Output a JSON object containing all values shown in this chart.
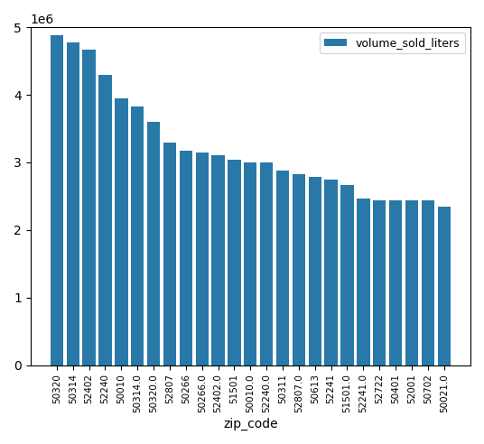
{
  "categories": [
    "50320",
    "50314",
    "52402",
    "52240",
    "50010",
    "50314.0",
    "50320.0",
    "52807",
    "50266",
    "50266.0",
    "52402.0",
    "51501",
    "50010.0",
    "52240.0",
    "50311",
    "52807.0",
    "50613",
    "52241",
    "51501.0",
    "52241.0",
    "52722",
    "50401",
    "52001",
    "50702",
    "50021.0"
  ],
  "values": [
    4880000,
    4780000,
    4670000,
    4300000,
    3950000,
    3830000,
    3600000,
    3290000,
    3170000,
    3150000,
    3100000,
    3040000,
    2995000,
    2995000,
    2880000,
    2820000,
    2790000,
    2750000,
    2665000,
    2460000,
    2440000,
    2435000,
    2440000,
    2440000,
    2350000
  ],
  "bar_color": "#2878a8",
  "xlabel": "zip_code",
  "legend_label": "volume_sold_liters",
  "ylim": [
    0,
    5000000
  ],
  "figsize": [
    5.36,
    4.92
  ],
  "dpi": 100
}
